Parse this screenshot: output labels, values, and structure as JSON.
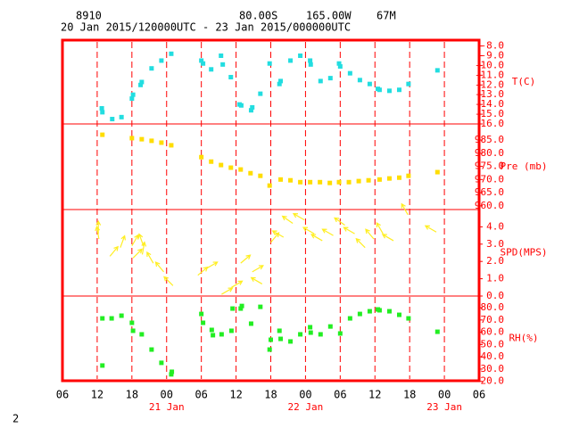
{
  "header": {
    "station": "8910",
    "lat": "80.00S",
    "lon": "165.00W",
    "elev": "67M",
    "period": "20 Jan 2015/120000UTC - 23 Jan 2015/000000UTC"
  },
  "page_number": "2",
  "chart_data": [
    {
      "type": "scatter",
      "y_label": "T(C)",
      "color": "#22dde0",
      "xlim": [
        6,
        78
      ],
      "ylim": [
        -16,
        -7.4
      ],
      "yticks": [
        {
          "value": -8,
          "label": "-8.0"
        },
        {
          "value": -9,
          "label": "-9.0"
        },
        {
          "value": -10,
          "label": "-10.0"
        },
        {
          "value": -11,
          "label": "-11.0"
        },
        {
          "value": -12,
          "label": "-12.0"
        },
        {
          "value": -13,
          "label": "-13.0"
        },
        {
          "value": -14,
          "label": "-14.0"
        },
        {
          "value": -15,
          "label": "-15.0"
        },
        {
          "value": -16,
          "label": "-16.0"
        }
      ],
      "x": [
        12.8,
        12.9,
        14.6,
        16.2,
        18.0,
        18.2,
        19.5,
        19.7,
        21.4,
        23.1,
        24.8,
        30.0,
        30.3,
        31.7,
        33.4,
        33.7,
        35.1,
        36.6,
        36.9,
        38.6,
        38.8,
        40.2,
        41.8,
        43.5,
        43.7,
        45.4,
        47.1,
        48.8,
        48.9,
        50.6,
        52.3,
        53.8,
        54.0,
        55.7,
        57.4,
        59.1,
        60.5,
        60.8,
        62.5,
        64.2,
        65.8,
        70.8
      ],
      "values": [
        -14.4,
        -14.8,
        -15.5,
        -15.3,
        -13.4,
        -13.0,
        -12.0,
        -11.7,
        -10.3,
        -9.5,
        -8.8,
        -9.5,
        -9.8,
        -10.4,
        -9.0,
        -9.9,
        -11.2,
        -14.0,
        -14.1,
        -14.6,
        -14.3,
        -12.9,
        -9.8,
        -11.9,
        -11.6,
        -9.5,
        -9.0,
        -9.5,
        -9.9,
        -11.6,
        -11.3,
        -9.8,
        -10.1,
        -10.8,
        -11.5,
        -11.9,
        -12.4,
        -12.5,
        -12.6,
        -12.5,
        -11.9,
        -10.5
      ]
    },
    {
      "type": "scatter",
      "y_label": "Pre (mb)",
      "color": "#ffdd00",
      "xlim": [
        6,
        78
      ],
      "ylim": [
        958.6,
        991.1
      ],
      "yticks": [
        {
          "value": 985,
          "label": "985.0"
        },
        {
          "value": 980,
          "label": "980.0"
        },
        {
          "value": 975,
          "label": "975.0"
        },
        {
          "value": 970,
          "label": "970.0"
        },
        {
          "value": 965,
          "label": "965.0"
        },
        {
          "value": 960,
          "label": "960.0"
        }
      ],
      "x": [
        12.9,
        18.0,
        19.7,
        21.4,
        23.1,
        24.8,
        30.0,
        31.7,
        33.4,
        35.1,
        36.8,
        38.5,
        40.2,
        41.8,
        43.7,
        45.4,
        47.1,
        48.8,
        50.5,
        52.2,
        53.8,
        55.5,
        57.2,
        58.9,
        60.8,
        62.5,
        64.2,
        65.8,
        70.8
      ],
      "values": [
        987.0,
        985.7,
        985.3,
        984.7,
        984.0,
        983.0,
        978.5,
        976.8,
        975.5,
        974.5,
        973.8,
        972.4,
        971.4,
        967.7,
        970.0,
        969.7,
        969.0,
        969.0,
        969.0,
        968.7,
        969.0,
        969.0,
        969.4,
        969.7,
        970.0,
        970.4,
        970.7,
        971.4,
        972.8
      ]
    },
    {
      "type": "wind",
      "y_label": "SPD(MPS)",
      "color": "#ffee22",
      "xlim": [
        6,
        78
      ],
      "ylim": [
        0,
        5
      ],
      "yticks": [
        {
          "value": 4,
          "label": "4.0"
        },
        {
          "value": 3,
          "label": "3.0"
        },
        {
          "value": 2,
          "label": "2.0"
        },
        {
          "value": 1,
          "label": "1.0"
        },
        {
          "value": 0,
          "label": "0.0"
        }
      ],
      "x": [
        12.2,
        12.3,
        14.2,
        16.0,
        18.0,
        18.2,
        19.8,
        20.0,
        21.7,
        23.5,
        25.1,
        29.4,
        30.9,
        33.5,
        35.2,
        36.8,
        38.8,
        40.5,
        42.0,
        44.2,
        45.8,
        47.8,
        49.5,
        50.9,
        52.8,
        54.8,
        56.5,
        58.3,
        59.8,
        61.4,
        63.2,
        65.7,
        70.6
      ],
      "values": [
        3.6,
        3.3,
        2.3,
        2.8,
        2.9,
        2.2,
        2.4,
        2.9,
        1.9,
        1.4,
        0.6,
        1.2,
        1.6,
        0.1,
        0.5,
        1.9,
        1.4,
        0.7,
        3.1,
        3.4,
        4.2,
        4.4,
        3.6,
        3.2,
        3.5,
        4.1,
        3.6,
        2.8,
        3.3,
        3.6,
        3.2,
        4.7,
        3.7
      ],
      "directions": [
        0,
        350,
        40,
        20,
        30,
        45,
        10,
        340,
        330,
        320,
        315,
        50,
        60,
        60,
        60,
        50,
        60,
        300,
        40,
        300,
        305,
        300,
        300,
        300,
        300,
        305,
        300,
        315,
        320,
        330,
        300,
        330,
        300
      ]
    },
    {
      "type": "scatter",
      "y_label": "RH(%)",
      "color": "#22ee22",
      "xlim": [
        6,
        78
      ],
      "ylim": [
        20.5,
        89.5
      ],
      "yticks": [
        {
          "value": 80,
          "label": "80.0"
        },
        {
          "value": 70,
          "label": "70.0"
        },
        {
          "value": 60,
          "label": "60.0"
        },
        {
          "value": 50,
          "label": "50.0"
        },
        {
          "value": 40,
          "label": "40.0"
        },
        {
          "value": 30,
          "label": "30.0"
        },
        {
          "value": 20,
          "label": "20.0"
        }
      ],
      "x": [
        12.9,
        12.9,
        14.5,
        16.2,
        18.0,
        18.2,
        19.7,
        21.4,
        23.1,
        24.8,
        24.9,
        30.0,
        30.3,
        31.8,
        32.0,
        33.5,
        35.2,
        35.4,
        36.8,
        37.0,
        38.6,
        40.2,
        41.8,
        42.0,
        43.5,
        43.7,
        45.4,
        47.1,
        48.8,
        48.9,
        50.6,
        52.3,
        54.0,
        55.7,
        57.4,
        59.1,
        60.5,
        60.8,
        62.5,
        64.2,
        65.8,
        70.8
      ],
      "values": [
        71.3,
        32.9,
        71.3,
        73.5,
        67.7,
        61.2,
        58.3,
        45.9,
        35.1,
        25.7,
        27.8,
        74.9,
        67.7,
        61.9,
        57.6,
        58.3,
        61.2,
        79.3,
        79.3,
        81.4,
        67.0,
        80.7,
        45.9,
        53.9,
        61.2,
        54.6,
        52.5,
        58.3,
        64.1,
        59.7,
        58.3,
        64.7,
        59.0,
        71.3,
        74.9,
        77.1,
        78.6,
        77.9,
        77.1,
        74.2,
        71.3,
        60.4
      ],
      "xticks": [
        {
          "value": 6,
          "label": "06"
        },
        {
          "value": 12,
          "label": "12"
        },
        {
          "value": 18,
          "label": "18"
        },
        {
          "value": 24,
          "label": "00"
        },
        {
          "value": 30,
          "label": "06"
        },
        {
          "value": 36,
          "label": "12"
        },
        {
          "value": 42,
          "label": "18"
        },
        {
          "value": 48,
          "label": "00"
        },
        {
          "value": 54,
          "label": "06"
        },
        {
          "value": 60,
          "label": "12"
        },
        {
          "value": 66,
          "label": "18"
        },
        {
          "value": 72,
          "label": "00"
        },
        {
          "value": 78,
          "label": "06"
        }
      ],
      "day_labels": [
        {
          "value": 24,
          "label": "21 Jan"
        },
        {
          "value": 48,
          "label": "22 Jan"
        },
        {
          "value": 72,
          "label": "23 Jan"
        }
      ]
    }
  ]
}
